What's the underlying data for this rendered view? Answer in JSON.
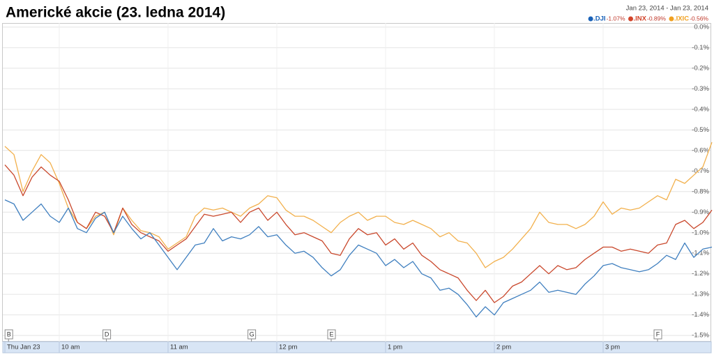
{
  "chart_data": {
    "type": "line",
    "title": "Americké akcie (23. ledna 2014)",
    "date_range": "Jan 23, 2014 - Jan 23, 2014",
    "x": [
      570,
      575,
      580,
      585,
      590,
      595,
      600,
      605,
      610,
      615,
      620,
      625,
      630,
      635,
      640,
      645,
      650,
      655,
      660,
      665,
      670,
      675,
      680,
      685,
      690,
      695,
      700,
      705,
      710,
      715,
      720,
      725,
      730,
      735,
      740,
      745,
      750,
      755,
      760,
      765,
      770,
      775,
      780,
      785,
      790,
      795,
      800,
      805,
      810,
      815,
      820,
      825,
      830,
      835,
      840,
      845,
      850,
      855,
      860,
      865,
      870,
      875,
      880,
      885,
      890,
      895,
      900,
      905,
      910,
      915,
      920,
      925,
      930,
      935,
      940,
      945,
      950,
      955,
      960
    ],
    "xlim": [
      570,
      960
    ],
    "xticks": [
      {
        "value": 570,
        "label": "Thu Jan 23"
      },
      {
        "value": 600,
        "label": "10 am"
      },
      {
        "value": 660,
        "label": "11 am"
      },
      {
        "value": 720,
        "label": "12 pm"
      },
      {
        "value": 780,
        "label": "1 pm"
      },
      {
        "value": 840,
        "label": "2 pm"
      },
      {
        "value": 900,
        "label": "3 pm"
      }
    ],
    "ylim": [
      -1.53,
      0.02
    ],
    "yticks": [
      {
        "value": 0,
        "label": "0.0%"
      },
      {
        "value": -0.1,
        "label": "-0.1%"
      },
      {
        "value": -0.2,
        "label": "-0.2%"
      },
      {
        "value": -0.3,
        "label": "-0.3%"
      },
      {
        "value": -0.4,
        "label": "-0.4%"
      },
      {
        "value": -0.5,
        "label": "-0.5%"
      },
      {
        "value": -0.6,
        "label": "-0.6%"
      },
      {
        "value": -0.7,
        "label": "-0.7%"
      },
      {
        "value": -0.8,
        "label": "-0.8%"
      },
      {
        "value": -0.9,
        "label": "-0.9%"
      },
      {
        "value": -1.0,
        "label": "-1.0%"
      },
      {
        "value": -1.1,
        "label": "-1.1%"
      },
      {
        "value": -1.2,
        "label": "-1.2%"
      },
      {
        "value": -1.3,
        "label": "-1.3%"
      },
      {
        "value": -1.4,
        "label": "-1.4%"
      },
      {
        "value": -1.5,
        "label": "-1.5%"
      }
    ],
    "grid": true,
    "flags": [
      {
        "label": "B",
        "x": 572
      },
      {
        "label": "D",
        "x": 626
      },
      {
        "label": "G",
        "x": 706
      },
      {
        "label": "E",
        "x": 750
      },
      {
        "label": "F",
        "x": 930
      }
    ],
    "series": [
      {
        "name": ".DJI",
        "change_label": "-1.07%",
        "color": "#3f7fbf",
        "legend_color": "#1a62b8",
        "values": [
          -0.84,
          -0.86,
          -0.94,
          -0.9,
          -0.86,
          -0.92,
          -0.95,
          -0.88,
          -0.98,
          -1.0,
          -0.93,
          -0.9,
          -1.0,
          -0.92,
          -0.98,
          -1.03,
          -1.0,
          -1.06,
          -1.12,
          -1.18,
          -1.12,
          -1.06,
          -1.05,
          -0.98,
          -1.04,
          -1.02,
          -1.03,
          -1.01,
          -0.97,
          -1.02,
          -1.01,
          -1.06,
          -1.1,
          -1.09,
          -1.12,
          -1.17,
          -1.21,
          -1.18,
          -1.11,
          -1.06,
          -1.08,
          -1.1,
          -1.16,
          -1.13,
          -1.17,
          -1.14,
          -1.2,
          -1.22,
          -1.28,
          -1.27,
          -1.3,
          -1.35,
          -1.41,
          -1.36,
          -1.4,
          -1.34,
          -1.32,
          -1.3,
          -1.28,
          -1.24,
          -1.29,
          -1.28,
          -1.29,
          -1.3,
          -1.25,
          -1.21,
          -1.16,
          -1.15,
          -1.17,
          -1.18,
          -1.19,
          -1.18,
          -1.15,
          -1.11,
          -1.13,
          -1.05,
          -1.12,
          -1.08,
          -1.07
        ]
      },
      {
        "name": ".INX",
        "change_label": "-0.89%",
        "color": "#c9472b",
        "legend_color": "#d2442a",
        "values": [
          -0.67,
          -0.72,
          -0.82,
          -0.73,
          -0.68,
          -0.72,
          -0.75,
          -0.84,
          -0.95,
          -0.98,
          -0.9,
          -0.92,
          -1.0,
          -0.88,
          -0.96,
          -1.0,
          -1.02,
          -1.04,
          -1.09,
          -1.06,
          -1.03,
          -0.97,
          -0.91,
          -0.92,
          -0.91,
          -0.9,
          -0.95,
          -0.9,
          -0.88,
          -0.94,
          -0.9,
          -0.96,
          -1.01,
          -1.0,
          -1.02,
          -1.04,
          -1.1,
          -1.11,
          -1.03,
          -0.98,
          -1.01,
          -1.0,
          -1.06,
          -1.03,
          -1.08,
          -1.05,
          -1.11,
          -1.14,
          -1.18,
          -1.2,
          -1.22,
          -1.28,
          -1.33,
          -1.28,
          -1.34,
          -1.31,
          -1.26,
          -1.24,
          -1.2,
          -1.16,
          -1.2,
          -1.16,
          -1.18,
          -1.17,
          -1.13,
          -1.1,
          -1.07,
          -1.07,
          -1.09,
          -1.08,
          -1.09,
          -1.1,
          -1.06,
          -1.05,
          -0.96,
          -0.94,
          -0.98,
          -0.95,
          -0.89
        ]
      },
      {
        "name": ".IXIC",
        "change_label": "-0.56%",
        "color": "#f2b04c",
        "legend_color": "#f0a020",
        "values": [
          -0.58,
          -0.62,
          -0.8,
          -0.7,
          -0.62,
          -0.66,
          -0.76,
          -0.88,
          -0.95,
          -0.98,
          -0.92,
          -0.9,
          -1.01,
          -0.88,
          -0.94,
          -0.99,
          -1.0,
          -1.02,
          -1.08,
          -1.05,
          -1.02,
          -0.92,
          -0.88,
          -0.89,
          -0.88,
          -0.9,
          -0.92,
          -0.88,
          -0.86,
          -0.82,
          -0.83,
          -0.89,
          -0.92,
          -0.92,
          -0.94,
          -0.97,
          -1.0,
          -0.95,
          -0.92,
          -0.9,
          -0.94,
          -0.92,
          -0.92,
          -0.95,
          -0.96,
          -0.94,
          -0.96,
          -0.98,
          -1.02,
          -1.0,
          -1.04,
          -1.05,
          -1.1,
          -1.17,
          -1.14,
          -1.12,
          -1.08,
          -1.03,
          -0.98,
          -0.9,
          -0.95,
          -0.96,
          -0.96,
          -0.98,
          -0.96,
          -0.92,
          -0.85,
          -0.91,
          -0.88,
          -0.89,
          -0.88,
          -0.85,
          -0.82,
          -0.84,
          -0.74,
          -0.76,
          -0.72,
          -0.68,
          -0.56
        ]
      }
    ]
  }
}
